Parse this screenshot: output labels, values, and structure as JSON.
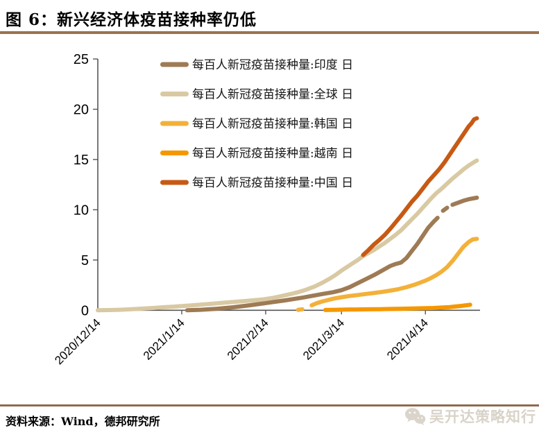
{
  "header": {
    "title": "图 6：新兴经济体疫苗接种率仍低"
  },
  "footer": {
    "source": "资料来源：Wind，德邦研究所"
  },
  "watermark": {
    "label": "吴开达策略知行",
    "icon": "wechat-icon"
  },
  "colors": {
    "accent_rule": "#9B7250",
    "footer_rule": "#8F6B4E",
    "axis": "#555555",
    "watermark_text": "#D9D3C8"
  },
  "chart_data": {
    "type": "line",
    "title": "",
    "xlabel": "",
    "ylabel": "",
    "grid": false,
    "legend_position": "top-center",
    "y_axis": {
      "ticks": [
        0,
        5,
        10,
        15,
        20,
        25
      ],
      "range": [
        0,
        25
      ]
    },
    "x_axis": {
      "tick_labels": [
        "2020/12/14",
        "2021/1/14",
        "2021/2/14",
        "2021/3/14",
        "2021/4/14"
      ],
      "tick_days": [
        0,
        31,
        62,
        90,
        121
      ],
      "start_date": "2020/12/14",
      "range_days": [
        0,
        141
      ]
    },
    "series": [
      {
        "key": "india",
        "name": "每百人新冠疫苗接种量:印度 日",
        "color": "#9E7B55",
        "points": [
          [
            33,
            0
          ],
          [
            38,
            0.05
          ],
          [
            44,
            0.15
          ],
          [
            50,
            0.3
          ],
          [
            56,
            0.5
          ],
          [
            62,
            0.72
          ],
          [
            69,
            0.98
          ],
          [
            76,
            1.28
          ],
          [
            83,
            1.62
          ],
          [
            87,
            1.8
          ],
          [
            90,
            2.0
          ],
          [
            93,
            2.3
          ],
          [
            96,
            2.7
          ],
          [
            99,
            3.1
          ],
          [
            102,
            3.5
          ],
          [
            105,
            3.95
          ],
          [
            108,
            4.4
          ],
          [
            110,
            4.6
          ],
          [
            112,
            4.75
          ],
          [
            114,
            5.2
          ],
          [
            116,
            5.9
          ],
          [
            118,
            6.6
          ],
          [
            120,
            7.4
          ],
          [
            122,
            8.2
          ],
          [
            124,
            8.8
          ],
          [
            125.5,
            9.2
          ],
          null,
          [
            127.5,
            9.9
          ],
          [
            129,
            10.2
          ],
          null,
          [
            131,
            10.5
          ],
          [
            133,
            10.7
          ],
          [
            135,
            10.9
          ],
          [
            137,
            11.05
          ],
          [
            140,
            11.2
          ]
        ]
      },
      {
        "key": "global",
        "name": "每百人新冠疫苗接种量:全球 日",
        "color": "#D9C9A3",
        "points": [
          [
            0,
            0
          ],
          [
            4,
            0.02
          ],
          [
            8,
            0.05
          ],
          [
            12,
            0.1
          ],
          [
            16,
            0.16
          ],
          [
            20,
            0.22
          ],
          [
            24,
            0.3
          ],
          [
            28,
            0.36
          ],
          [
            31,
            0.42
          ],
          [
            35,
            0.5
          ],
          [
            39,
            0.58
          ],
          [
            43,
            0.67
          ],
          [
            47,
            0.76
          ],
          [
            51,
            0.85
          ],
          [
            55,
            0.94
          ],
          [
            59,
            1.03
          ],
          [
            62,
            1.12
          ],
          [
            65,
            1.25
          ],
          [
            68,
            1.42
          ],
          [
            71,
            1.6
          ],
          [
            74,
            1.8
          ],
          [
            77,
            2.05
          ],
          [
            80,
            2.35
          ],
          [
            83,
            2.75
          ],
          [
            86,
            3.2
          ],
          [
            88,
            3.55
          ],
          [
            90,
            3.95
          ],
          [
            92,
            4.3
          ],
          [
            94,
            4.65
          ],
          [
            96,
            5.0
          ],
          [
            98,
            5.4
          ],
          [
            100,
            5.7
          ],
          [
            102,
            6.0
          ],
          [
            104,
            6.35
          ],
          [
            106,
            6.7
          ],
          [
            108,
            7.1
          ],
          [
            110,
            7.5
          ],
          [
            112,
            7.95
          ],
          [
            114,
            8.5
          ],
          [
            116,
            9.05
          ],
          [
            118,
            9.6
          ],
          [
            120,
            10.2
          ],
          [
            121,
            10.5
          ],
          [
            123,
            11.1
          ],
          [
            125,
            11.65
          ],
          [
            127,
            12.1
          ],
          [
            129,
            12.6
          ],
          [
            131,
            13.1
          ],
          [
            133,
            13.55
          ],
          [
            135,
            14.0
          ],
          [
            137,
            14.4
          ],
          [
            139,
            14.75
          ],
          [
            140,
            14.9
          ]
        ]
      },
      {
        "key": "south-korea",
        "name": "每百人新冠疫苗接种量:韩国 日",
        "color": "#F3B13A",
        "points": [
          [
            74,
            0.04
          ],
          [
            75.5,
            0.1
          ],
          null,
          [
            79,
            0.5
          ],
          [
            81,
            0.72
          ],
          [
            83,
            0.88
          ],
          [
            85,
            1.02
          ],
          [
            87,
            1.15
          ],
          [
            90,
            1.3
          ],
          [
            93,
            1.42
          ],
          [
            96,
            1.52
          ],
          [
            99,
            1.62
          ],
          [
            102,
            1.72
          ],
          [
            105,
            1.83
          ],
          [
            108,
            1.95
          ],
          [
            111,
            2.1
          ],
          [
            114,
            2.3
          ],
          [
            117,
            2.55
          ],
          [
            119,
            2.75
          ],
          [
            121,
            2.95
          ],
          [
            123,
            3.2
          ],
          [
            125,
            3.5
          ],
          [
            127,
            3.85
          ],
          [
            129,
            4.3
          ],
          [
            131,
            4.9
          ],
          [
            133,
            5.6
          ],
          [
            135,
            6.3
          ],
          [
            137,
            6.8
          ],
          [
            138.5,
            7.05
          ],
          [
            140,
            7.1
          ]
        ]
      },
      {
        "key": "vietnam",
        "name": "每百人新冠疫苗接种量:越南 日",
        "color": "#F59800",
        "points": [
          [
            84,
            0.03
          ],
          [
            88,
            0.05
          ],
          [
            92,
            0.07
          ],
          [
            96,
            0.08
          ],
          [
            100,
            0.1
          ],
          [
            104,
            0.11
          ],
          [
            108,
            0.13
          ],
          [
            112,
            0.15
          ],
          [
            116,
            0.17
          ],
          [
            120,
            0.2
          ],
          [
            124,
            0.23
          ],
          [
            127,
            0.27
          ],
          [
            130,
            0.32
          ],
          [
            132,
            0.37
          ],
          [
            134,
            0.43
          ],
          [
            136,
            0.5
          ],
          [
            137.5,
            0.55
          ]
        ]
      },
      {
        "key": "china",
        "name": "每百人新冠疫苗接种量:中国 日",
        "color": "#C65A15",
        "points": [
          [
            98,
            5.5
          ],
          [
            100,
            6.0
          ],
          [
            102,
            6.55
          ],
          [
            104,
            7.0
          ],
          [
            106,
            7.5
          ],
          [
            108,
            8.1
          ],
          [
            110,
            8.75
          ],
          [
            112,
            9.4
          ],
          [
            114,
            10.1
          ],
          [
            116,
            10.8
          ],
          [
            118,
            11.4
          ],
          [
            120,
            12.1
          ],
          [
            122,
            12.8
          ],
          [
            124,
            13.4
          ],
          [
            126,
            14.0
          ],
          [
            128,
            14.7
          ],
          [
            130,
            15.5
          ],
          [
            132,
            16.3
          ],
          [
            134,
            17.1
          ],
          [
            136,
            17.9
          ],
          [
            137,
            18.3
          ],
          [
            138,
            18.6
          ],
          [
            139,
            19.0
          ],
          [
            140,
            19.1
          ]
        ]
      }
    ]
  }
}
